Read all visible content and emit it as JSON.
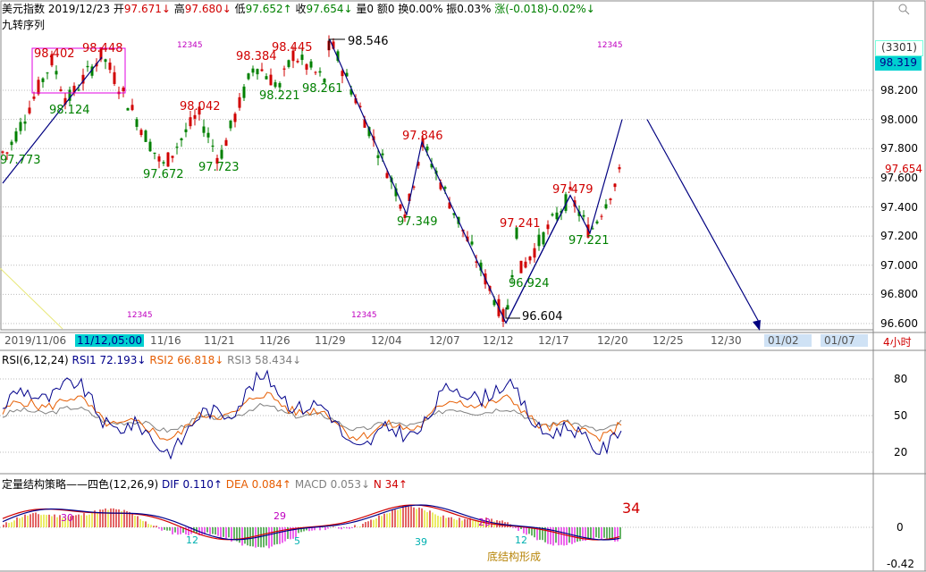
{
  "header": {
    "name": "美元指数",
    "date": "2019/12/23",
    "open_label": "开",
    "open": "97.671↓",
    "high_label": "高",
    "high": "97.680↓",
    "low_label": "低",
    "low": "97.652↑",
    "close_label": "收",
    "close": "97.654↓",
    "vol": "量0",
    "amount": "额0",
    "turnover": "换0.00%",
    "amplitude": "振0.03%",
    "change": "涨(-0.018)-0.02%↓"
  },
  "jiuzhuan_label": "九转序列",
  "price_tags": {
    "count": "(3301)",
    "current": "98.319",
    "last_close": "97.654"
  },
  "xaxis": {
    "labels": [
      "2019/11/06",
      "11/12,05:00",
      "11/16",
      "11/21",
      "11/26",
      "11/29",
      "12/04",
      "12/07",
      "12/12",
      "12/17",
      "12/20",
      "12/25",
      "12/30",
      "01/02",
      "01/07"
    ],
    "period": "4小时"
  },
  "rsi": {
    "title": "RSI(6,12,24)",
    "rsi1": "RSI1 72.193↓",
    "rsi2": "RSI2 66.818↓",
    "rsi3": "RSI3 58.434↓",
    "ticks": [
      "80",
      "50",
      "20"
    ]
  },
  "macd": {
    "title": "定量结构策略——四色(12,26,9)",
    "dif": "DIF 0.110↑",
    "dea": "DEA 0.084↑",
    "macd": "MACD 0.053↓",
    "n": "N 34↑",
    "ticks": [
      "0",
      "-0.42"
    ],
    "big_n": "34",
    "counts": [
      "30",
      "29",
      "20",
      "5",
      "39",
      "12",
      "12"
    ],
    "bottom_text": "底结构形成"
  },
  "chart_data": {
    "type": "line",
    "title": "美元指数",
    "ylim": [
      96.55,
      98.7
    ],
    "yticks": [
      98.2,
      98.0,
      97.8,
      97.6,
      97.4,
      97.2,
      97.0,
      96.8,
      96.6
    ],
    "pivots": [
      {
        "x": "11/08",
        "y": 97.773,
        "type": "low"
      },
      {
        "x": "11/11",
        "y": 98.402,
        "type": "high"
      },
      {
        "x": "11/13",
        "y": 98.124,
        "type": "low"
      },
      {
        "x": "11/14",
        "y": 98.448,
        "type": "high"
      },
      {
        "x": "11/19",
        "y": 97.672,
        "type": "low"
      },
      {
        "x": "11/20",
        "y": 98.042,
        "type": "high"
      },
      {
        "x": "11/22",
        "y": 97.723,
        "type": "low"
      },
      {
        "x": "11/25",
        "y": 98.384,
        "type": "high"
      },
      {
        "x": "11/26",
        "y": 98.221,
        "type": "low"
      },
      {
        "x": "11/27",
        "y": 98.445,
        "type": "high"
      },
      {
        "x": "11/28",
        "y": 98.261,
        "type": "low"
      },
      {
        "x": "11/29",
        "y": 98.546,
        "type": "high"
      },
      {
        "x": "12/05",
        "y": 97.349,
        "type": "low"
      },
      {
        "x": "12/06",
        "y": 97.846,
        "type": "high"
      },
      {
        "x": "12/12",
        "y": 96.604,
        "type": "low"
      },
      {
        "x": "12/13",
        "y": 97.241,
        "type": "high"
      },
      {
        "x": "12/13",
        "y": 96.924,
        "type": "low"
      },
      {
        "x": "12/17",
        "y": 97.479,
        "type": "high"
      },
      {
        "x": "12/18",
        "y": 97.221,
        "type": "low"
      },
      {
        "x": "12/23",
        "y": 97.654,
        "type": "close"
      }
    ],
    "projection": [
      {
        "x": "12/23",
        "y": 98.0
      },
      {
        "x": "01/02",
        "y": 96.6
      }
    ]
  }
}
